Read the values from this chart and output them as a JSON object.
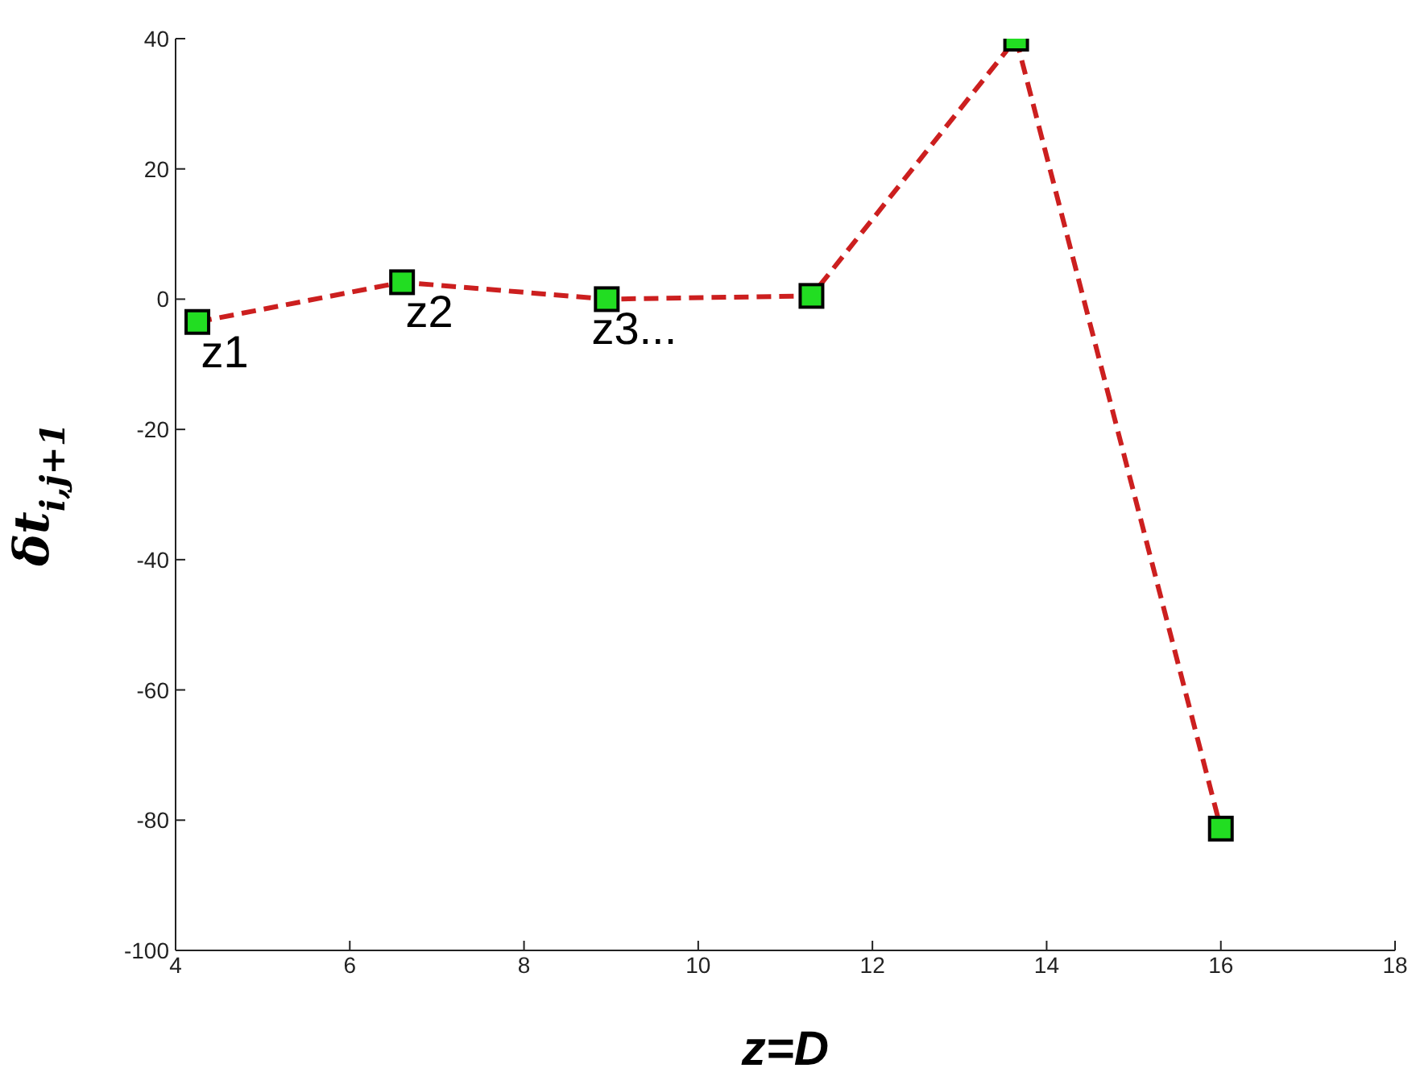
{
  "chart_data": {
    "type": "line",
    "xlabel": "z=D",
    "ylabel": "δt$_{i,j+1}$",
    "x": [
      4.25,
      6.6,
      8.95,
      11.3,
      13.65,
      16.0
    ],
    "series": [
      {
        "color": "#cc1f1f",
        "values": [
          -3.5,
          2.6,
          0,
          0.5,
          40,
          -81.3
        ]
      }
    ],
    "marker": "square",
    "line_style": "dashed",
    "grid": false,
    "legend": false,
    "xlim": [
      4,
      18
    ],
    "xticks": [
      4,
      6,
      8,
      10,
      12,
      14,
      16,
      18
    ],
    "ylim": [
      -100,
      40
    ],
    "yticks": [
      -100,
      -80,
      -60,
      -40,
      -20,
      0,
      20,
      40
    ],
    "annotations": [
      {
        "text": "z1",
        "x": 4.25,
        "y": -3.5
      },
      {
        "text": "z2",
        "x": 6.6,
        "y": 2.6
      },
      {
        "text": "z3...",
        "x": 8.95,
        "y": 0
      }
    ]
  }
}
